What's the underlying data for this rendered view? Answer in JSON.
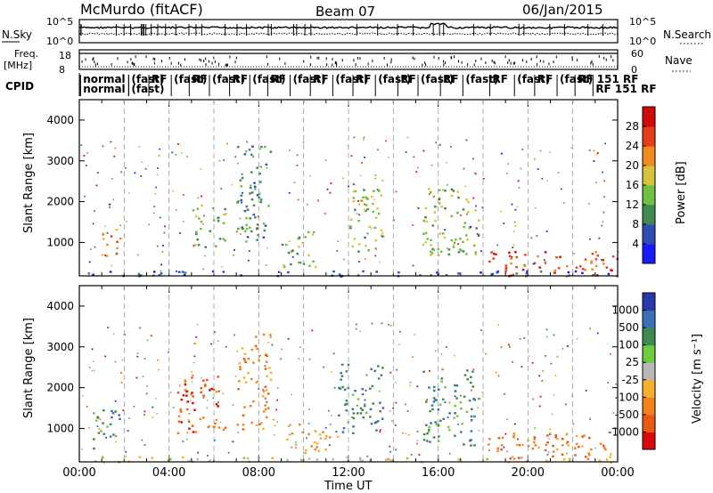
{
  "header": {
    "station": "McMurdo (fitACF)",
    "beam": "Beam 07",
    "date": "06/Jan/2015"
  },
  "sky_panel": {
    "left_label": "N.Sky",
    "right_label": "N.Search",
    "left_ticks": [
      "10^5",
      "10^0"
    ],
    "right_ticks": [
      "10^5",
      "10^0"
    ]
  },
  "freq_panel": {
    "left_label_line1": "Freq.",
    "left_label_line2": "[MHz]",
    "right_label": "Nave",
    "left_ticks": [
      "18",
      "8"
    ],
    "right_ticks": [
      "60",
      "0"
    ]
  },
  "cpid": {
    "label": "CPID",
    "entries": [
      {
        "t": 0.05,
        "text": "normal"
      },
      {
        "t": 0.05,
        "text": "normal",
        "row": 2
      },
      {
        "t": 2.2,
        "text": "(fast)"
      },
      {
        "t": 2.2,
        "text": "(fast)",
        "row": 2
      },
      {
        "t": 3.1,
        "text": "RF"
      },
      {
        "t": 4.1,
        "text": "(fast)"
      },
      {
        "t": 4.9,
        "text": "RF"
      },
      {
        "t": 5.8,
        "text": "(fast)"
      },
      {
        "t": 6.7,
        "text": "RF"
      },
      {
        "t": 7.6,
        "text": "(fast)"
      },
      {
        "t": 8.4,
        "text": "RF"
      },
      {
        "t": 9.4,
        "text": "(fast)"
      },
      {
        "t": 10.3,
        "text": "RF"
      },
      {
        "t": 11.3,
        "text": "(fast)"
      },
      {
        "t": 12.2,
        "text": "RF"
      },
      {
        "t": 13.2,
        "text": "(fast)"
      },
      {
        "t": 14.2,
        "text": "RF"
      },
      {
        "t": 15.1,
        "text": "(fast)"
      },
      {
        "t": 16.1,
        "text": "RF"
      },
      {
        "t": 17.1,
        "text": "(fast)"
      },
      {
        "t": 18.3,
        "text": "RF"
      },
      {
        "t": 19.4,
        "text": "(fast)"
      },
      {
        "t": 20.3,
        "text": "RF"
      },
      {
        "t": 21.3,
        "text": "(fast)"
      },
      {
        "t": 22.1,
        "text": "RF 151 RF"
      },
      {
        "t": 22.9,
        "text": "RF 151 RF",
        "row": 2
      }
    ]
  },
  "time_axis": {
    "label": "Time UT",
    "ticks": [
      "00:00",
      "04:00",
      "08:00",
      "12:00",
      "16:00",
      "20:00",
      "00:00"
    ]
  },
  "chart_data": [
    {
      "type": "heatmap",
      "title": "",
      "xlabel": "Time UT",
      "ylabel": "Slant Range [km]",
      "xlim": [
        0,
        24
      ],
      "ylim": [
        180,
        4500
      ],
      "y_ticks": [
        "1000",
        "2000",
        "3000",
        "4000"
      ],
      "colorbar": {
        "label": "Power [dB]",
        "ticks": [
          "4",
          "8",
          "12",
          "16",
          "20",
          "24",
          "28"
        ],
        "colors": [
          "#1a1aff",
          "#2e4fb0",
          "#3f8a4f",
          "#6fbf40",
          "#d8c43a",
          "#f08a1e",
          "#e83c1a",
          "#d10a0a"
        ]
      },
      "features": [
        {
          "t0": 0.1,
          "t1": 24,
          "r0": 190,
          "r1": 320,
          "level": 1
        },
        {
          "t0": 1.0,
          "t1": 1.8,
          "r0": 600,
          "r1": 1400,
          "level": 5
        },
        {
          "t0": 5.0,
          "t1": 6.5,
          "r0": 900,
          "r1": 2000,
          "level": 3
        },
        {
          "t0": 7.0,
          "t1": 8.5,
          "r0": 1000,
          "r1": 3400,
          "level": 2
        },
        {
          "t0": 9.0,
          "t1": 10.5,
          "r0": 400,
          "r1": 1300,
          "level": 3
        },
        {
          "t0": 12.0,
          "t1": 13.5,
          "r0": 800,
          "r1": 2500,
          "level": 3
        },
        {
          "t0": 15.3,
          "t1": 17.8,
          "r0": 700,
          "r1": 2400,
          "level": 3
        },
        {
          "t0": 18.2,
          "t1": 24.0,
          "r0": 190,
          "r1": 800,
          "level": 6
        }
      ]
    },
    {
      "type": "heatmap",
      "title": "",
      "xlabel": "Time UT",
      "ylabel": "Slant Range [km]",
      "xlim": [
        0,
        24
      ],
      "ylim": [
        180,
        4500
      ],
      "y_ticks": [
        "1000",
        "2000",
        "3000",
        "4000"
      ],
      "colorbar": {
        "label": "Velocity [m s⁻¹]",
        "ticks": [
          "1000",
          "500",
          "100",
          "25",
          "-25",
          "-100",
          "-500",
          "-1000"
        ],
        "colors": [
          "#2a3aa8",
          "#3d6fb5",
          "#3f8a4f",
          "#6fcc40",
          "#b8b8b8",
          "#f5b030",
          "#f0821e",
          "#e85a14",
          "#d80a0a"
        ]
      },
      "features": [
        {
          "t0": 0.1,
          "t1": 24,
          "r0": 190,
          "r1": 330,
          "level": 4
        },
        {
          "t0": 0.5,
          "t1": 1.8,
          "r0": 500,
          "r1": 1500,
          "level": 6
        },
        {
          "t0": 4.3,
          "t1": 6.5,
          "r0": 900,
          "r1": 2300,
          "level": 1
        },
        {
          "t0": 7.0,
          "t1": 8.5,
          "r0": 1000,
          "r1": 3400,
          "level": 2
        },
        {
          "t0": 9.2,
          "t1": 11.5,
          "r0": 400,
          "r1": 1200,
          "level": 3
        },
        {
          "t0": 11.5,
          "t1": 13.5,
          "r0": 900,
          "r1": 2600,
          "level": 6
        },
        {
          "t0": 15.3,
          "t1": 17.8,
          "r0": 600,
          "r1": 2500,
          "level": 6
        },
        {
          "t0": 18.2,
          "t1": 24.0,
          "r0": 250,
          "r1": 900,
          "level": 2
        }
      ]
    }
  ]
}
